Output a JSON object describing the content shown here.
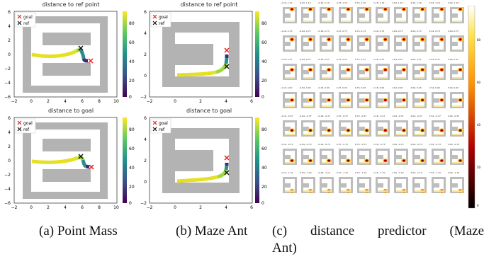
{
  "figures": [
    {
      "id": "a",
      "title": "distance to ref point",
      "xticks": [
        "−2",
        "0",
        "2",
        "4",
        "6",
        "8",
        "10"
      ],
      "yticks": [
        "6",
        "4",
        "2",
        "0",
        "−2",
        "−4",
        "−6"
      ],
      "cbar_ticks": [
        "80",
        "60",
        "40",
        "20",
        "0"
      ],
      "legend": [
        {
          "label": "goal",
          "marker": "x",
          "color": "#e32020"
        },
        {
          "label": "ref",
          "marker": "x",
          "color": "#111111"
        }
      ],
      "chart_data": {
        "type": "scatter",
        "xlim": [
          -2,
          10
        ],
        "ylim": [
          -6,
          6
        ],
        "cbar_range": [
          0,
          90
        ],
        "goal": [
          7,
          -0.8
        ],
        "ref": [
          5.7,
          0.8
        ]
      }
    },
    {
      "id": "b",
      "title": "distance to ref point",
      "xticks": [
        "−2",
        "0",
        "2",
        "4",
        "6"
      ],
      "yticks": [
        "6",
        "4",
        "2",
        "0",
        "−2"
      ],
      "cbar_ticks": [
        "80",
        "60",
        "40",
        "20",
        "0"
      ],
      "legend": [
        {
          "label": "goal",
          "marker": "x",
          "color": "#e32020"
        },
        {
          "label": "ref",
          "marker": "x",
          "color": "#111111"
        }
      ],
      "chart_data": {
        "type": "scatter",
        "xlim": [
          -2,
          6
        ],
        "ylim": [
          -2,
          6
        ],
        "cbar_range": [
          0,
          90
        ],
        "goal": [
          4,
          2.4
        ],
        "ref": [
          4,
          1.3
        ]
      }
    },
    {
      "id": "c",
      "title": "distance to goal",
      "xticks": [
        "−2",
        "0",
        "2",
        "4",
        "6",
        "8",
        "10"
      ],
      "yticks": [
        "6",
        "4",
        "2",
        "0",
        "−2",
        "−4",
        "−6"
      ],
      "cbar_ticks": [
        "80",
        "60",
        "40",
        "20",
        "0"
      ],
      "legend": [
        {
          "label": "goal",
          "marker": "x",
          "color": "#e32020"
        },
        {
          "label": "ref",
          "marker": "x",
          "color": "#111111"
        }
      ],
      "chart_data": {
        "type": "scatter",
        "xlim": [
          -2,
          10
        ],
        "ylim": [
          -6,
          6
        ],
        "cbar_range": [
          0,
          90
        ],
        "goal": [
          7,
          -0.8
        ],
        "ref": [
          5.7,
          0.5
        ]
      }
    },
    {
      "id": "d",
      "title": "distance to goal",
      "xticks": [
        "−2",
        "0",
        "2",
        "4",
        "6"
      ],
      "yticks": [
        "6",
        "4",
        "2",
        "0",
        "−2"
      ],
      "cbar_ticks": [
        "80",
        "60",
        "40",
        "20",
        "0"
      ],
      "legend": [
        {
          "label": "goal",
          "marker": "x",
          "color": "#e32020"
        },
        {
          "label": "ref",
          "marker": "x",
          "color": "#111111"
        }
      ],
      "chart_data": {
        "type": "scatter",
        "xlim": [
          -2,
          6
        ],
        "ylim": [
          -2,
          6
        ],
        "cbar_range": [
          0,
          90
        ],
        "goal": [
          4,
          2.3
        ],
        "ref": [
          4,
          0.8
        ]
      }
    }
  ],
  "grid_panel": {
    "row_labels": [
      [
        "-1.10, 1.10",
        "-0.64, 1.10",
        "-0.18, 1.10",
        "0.27, 1.10",
        "0.73, 1.10",
        "1.18, 1.10",
        "1.64, 1.10",
        "2.09, 1.10",
        "2.54, 1.10",
        "3.00, 1.10"
      ],
      [
        "-1.10, 0.73",
        "-0.64, 0.73",
        "-0.18, 0.73",
        "0.27, 0.73",
        "0.73, 0.73",
        "1.18, 0.73",
        "1.64, 0.73",
        "2.09, 0.73",
        "2.54, 0.73",
        "3.00, 0.73"
      ],
      [
        "-1.10, 0.37",
        "-0.64, 0.37",
        "-0.18, 0.37",
        "0.27, 0.37",
        "0.73, 0.37",
        "1.18, 0.37",
        "1.64, 0.37",
        "2.09, 0.37",
        "2.54, 0.37",
        "3.00, 0.37"
      ],
      [
        "-1.10, 0.00",
        "-0.64, 0.00",
        "-0.18, 0.00",
        "0.27, 0.00",
        "0.73, 0.00",
        "1.18, 0.00",
        "1.64, 0.00",
        "2.09, 0.00",
        "2.54, 0.00",
        "3.00, 0.00"
      ],
      [
        "-1.10, -0.37",
        "-0.64, -0.37",
        "-0.18, -0.37",
        "0.27, -0.37",
        "0.73, -0.37",
        "1.18, -0.37",
        "1.64, -0.37",
        "2.09, -0.37",
        "2.54, -0.37",
        "3.00, -0.37"
      ],
      [
        "-1.10, -0.73",
        "-0.64, -0.73",
        "-0.18, -0.73",
        "0.27, -0.73",
        "0.73, -0.73",
        "1.18, -0.73",
        "1.64, -0.73",
        "2.09, -0.73",
        "2.54, -0.73",
        "3.00, -0.73"
      ],
      [
        "-1.10, -1.10",
        "-0.64, -1.10",
        "-0.18, -1.10",
        "0.27, -1.10",
        "0.73, -1.10",
        "1.18, -1.10",
        "1.64, -1.10",
        "2.09, -1.10",
        "2.54, -1.10",
        "3.00, -1.10"
      ]
    ],
    "cbar_ticks": [
      "80",
      "60",
      "40",
      "20",
      "0"
    ]
  },
  "captions": {
    "a": "(a) Point Mass",
    "b": "(b) Maze Ant",
    "c_line1": "(c) distance predictor (Maze",
    "c_line2": "Ant)"
  },
  "colors": {
    "wall": "#b3b3b3",
    "goal": "#e32020",
    "ref": "#111111"
  }
}
